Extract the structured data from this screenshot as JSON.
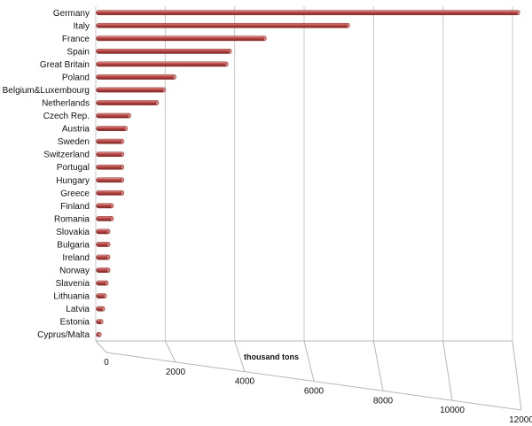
{
  "chart_data": {
    "type": "bar",
    "orientation": "horizontal",
    "style": "3d-cylinder",
    "title": "",
    "xlabel": "thousand tons",
    "ylabel": "",
    "xlim": [
      0,
      12000
    ],
    "x_ticks": [
      0,
      2000,
      4000,
      6000,
      8000,
      10000,
      12000
    ],
    "grid": true,
    "legend": "none",
    "bar_color": "#c0504d",
    "categories": [
      "Germany",
      "Italy",
      "France",
      "Spain",
      "Great Britain",
      "Poland",
      "Belgium&Luxembourg",
      "Netherlands",
      "Czech Rep.",
      "Austria",
      "Sweden",
      "Switzerland",
      "Portugal",
      "Hungary",
      "Greece",
      "Finland",
      "Romania",
      "Slovakia",
      "Bulgaria",
      "Ireland",
      "Norway",
      "Slavenia",
      "Lithuania",
      "Latvia",
      "Estonia",
      "Cyprus/Malta"
    ],
    "values": [
      12200,
      7300,
      4900,
      3900,
      3800,
      2300,
      2000,
      1800,
      1000,
      900,
      800,
      800,
      800,
      800,
      800,
      500,
      500,
      400,
      400,
      400,
      400,
      350,
      300,
      250,
      200,
      150
    ]
  }
}
